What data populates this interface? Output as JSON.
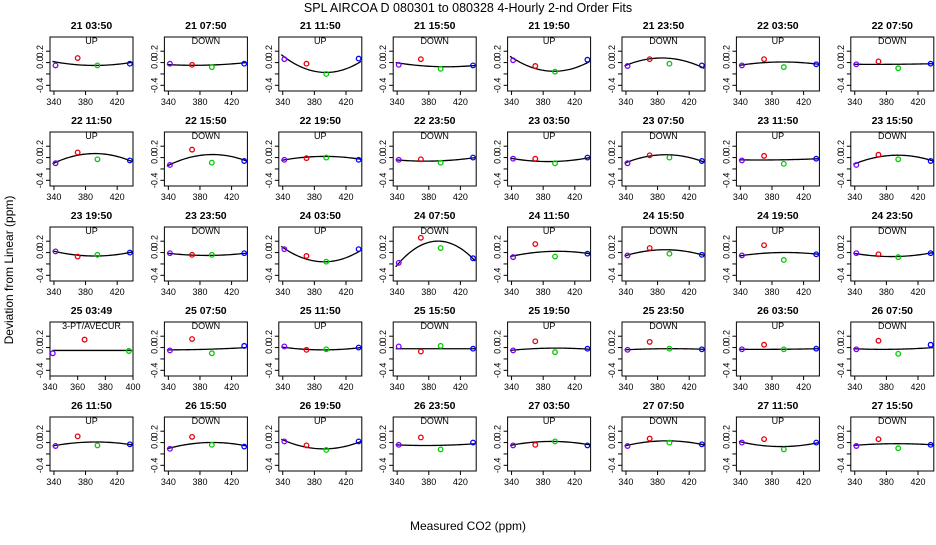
{
  "title": "SPL   AIRCOA D   080301 to 080328   4-Hourly 2-nd Order Fits",
  "xlabel": "Measured CO2 (ppm)",
  "ylabel": "Deviation from Linear (ppm)",
  "colors": {
    "red": "#e8000b",
    "green": "#00cc00",
    "blue": "#0000ff",
    "purple": "#7a00ff",
    "curve": "#000000"
  },
  "chart_data": {
    "type": "scatter",
    "grid": false,
    "layout": "5 rows x 8 columns of small multiples",
    "ylim": [
      -0.5,
      0.45
    ],
    "yticks": [
      -0.4,
      -0.2,
      0.0,
      0.2
    ],
    "yticklabels": [
      "-0.4",
      "",
      "0.0",
      "0.2"
    ],
    "default_xlim": [
      335,
      440
    ],
    "default_xticks": [
      340,
      380,
      420
    ],
    "panels": [
      {
        "title": "21 03:50",
        "sub": "UP",
        "pts": [
          [
            342,
            -0.05
          ],
          [
            370,
            0.08
          ],
          [
            395,
            -0.05
          ],
          [
            436,
            -0.02
          ]
        ],
        "curve": [
          0.02,
          -0.05,
          0.005
        ]
      },
      {
        "title": "21 07:50",
        "sub": "DOWN",
        "pts": [
          [
            342,
            -0.02
          ],
          [
            370,
            -0.04
          ],
          [
            395,
            -0.08
          ],
          [
            436,
            -0.02
          ]
        ],
        "curve": [
          -0.035,
          -0.045,
          0.0
        ]
      },
      {
        "title": "21 11:50",
        "sub": "UP",
        "pts": [
          [
            342,
            0.06
          ],
          [
            370,
            -0.02
          ],
          [
            395,
            -0.2
          ],
          [
            436,
            0.07
          ]
        ],
        "curve": [
          0.14,
          -0.17,
          0.02
        ]
      },
      {
        "title": "21 15:50",
        "sub": "DOWN",
        "pts": [
          [
            342,
            -0.04
          ],
          [
            370,
            0.06
          ],
          [
            395,
            -0.11
          ],
          [
            436,
            -0.05
          ]
        ],
        "curve": [
          0.0,
          -0.07,
          -0.05
        ]
      },
      {
        "title": "21 19:50",
        "sub": "UP",
        "pts": [
          [
            342,
            0.04
          ],
          [
            370,
            -0.06
          ],
          [
            395,
            -0.16
          ],
          [
            436,
            0.05
          ]
        ],
        "curve": [
          0.11,
          -0.15,
          0.02
        ]
      },
      {
        "title": "21 23:50",
        "sub": "DOWN",
        "pts": [
          [
            342,
            -0.06
          ],
          [
            370,
            0.06
          ],
          [
            395,
            -0.02
          ],
          [
            436,
            -0.05
          ]
        ],
        "curve": [
          -0.06,
          0.08,
          -0.1
        ]
      },
      {
        "title": "22 03:50",
        "sub": "UP",
        "pts": [
          [
            342,
            -0.05
          ],
          [
            370,
            0.06
          ],
          [
            395,
            -0.08
          ],
          [
            436,
            -0.03
          ]
        ],
        "curve": [
          -0.05,
          0.01,
          -0.03
        ]
      },
      {
        "title": "22 07:50",
        "sub": "DOWN",
        "pts": [
          [
            342,
            -0.03
          ],
          [
            370,
            0.02
          ],
          [
            395,
            -0.1
          ],
          [
            436,
            -0.02
          ]
        ],
        "curve": [
          -0.03,
          -0.03,
          -0.02
        ]
      },
      {
        "title": "22 11:50",
        "sub": "UP",
        "pts": [
          [
            342,
            -0.1
          ],
          [
            370,
            0.09
          ],
          [
            395,
            -0.03
          ],
          [
            436,
            -0.05
          ]
        ],
        "curve": [
          -0.11,
          0.07,
          -0.07
        ]
      },
      {
        "title": "22 15:50",
        "sub": "DOWN",
        "pts": [
          [
            342,
            -0.13
          ],
          [
            370,
            0.14
          ],
          [
            395,
            -0.09
          ],
          [
            436,
            -0.06
          ]
        ],
        "curve": [
          -0.15,
          0.05,
          -0.06
        ]
      },
      {
        "title": "22 19:50",
        "sub": "UP",
        "pts": [
          [
            342,
            -0.04
          ],
          [
            370,
            -0.01
          ],
          [
            395,
            0.0
          ],
          [
            436,
            -0.04
          ]
        ],
        "curve": [
          -0.05,
          0.02,
          -0.03
        ]
      },
      {
        "title": "22 23:50",
        "sub": "DOWN",
        "pts": [
          [
            342,
            -0.04
          ],
          [
            370,
            -0.03
          ],
          [
            395,
            -0.09
          ],
          [
            436,
            0.0
          ]
        ],
        "curve": [
          -0.04,
          -0.06,
          0.0
        ]
      },
      {
        "title": "23 03:50",
        "sub": "UP",
        "pts": [
          [
            342,
            -0.02
          ],
          [
            370,
            -0.02
          ],
          [
            395,
            -0.1
          ],
          [
            436,
            0.0
          ]
        ],
        "curve": [
          -0.01,
          -0.07,
          0.0
        ]
      },
      {
        "title": "23 07:50",
        "sub": "DOWN",
        "pts": [
          [
            342,
            -0.1
          ],
          [
            370,
            0.04
          ],
          [
            395,
            0.0
          ],
          [
            436,
            -0.06
          ]
        ],
        "curve": [
          -0.1,
          0.05,
          -0.08
        ]
      },
      {
        "title": "23 11:50",
        "sub": "UP",
        "pts": [
          [
            342,
            -0.05
          ],
          [
            370,
            0.03
          ],
          [
            395,
            -0.11
          ],
          [
            436,
            -0.02
          ]
        ],
        "curve": [
          -0.04,
          -0.04,
          -0.02
        ]
      },
      {
        "title": "23 15:50",
        "sub": "DOWN",
        "pts": [
          [
            342,
            -0.13
          ],
          [
            370,
            0.05
          ],
          [
            395,
            -0.03
          ],
          [
            436,
            -0.06
          ]
        ],
        "curve": [
          -0.12,
          0.04,
          -0.06
        ]
      },
      {
        "title": "23 19:50",
        "sub": "UP",
        "pts": [
          [
            342,
            0.02
          ],
          [
            370,
            -0.07
          ],
          [
            395,
            -0.04
          ],
          [
            436,
            0.0
          ]
        ],
        "curve": [
          0.03,
          -0.06,
          0.01
        ]
      },
      {
        "title": "23 23:50",
        "sub": "DOWN",
        "pts": [
          [
            342,
            -0.01
          ],
          [
            370,
            -0.04
          ],
          [
            395,
            -0.04
          ],
          [
            436,
            -0.01
          ]
        ],
        "curve": [
          -0.01,
          -0.05,
          -0.01
        ]
      },
      {
        "title": "24 03:50",
        "sub": "UP",
        "pts": [
          [
            342,
            0.06
          ],
          [
            370,
            -0.06
          ],
          [
            395,
            -0.16
          ],
          [
            436,
            0.06
          ]
        ],
        "curve": [
          0.11,
          -0.16,
          0.04
        ]
      },
      {
        "title": "24 07:50",
        "sub": "DOWN",
        "pts": [
          [
            342,
            -0.18
          ],
          [
            370,
            0.26
          ],
          [
            395,
            0.08
          ],
          [
            436,
            -0.1
          ]
        ],
        "curve": [
          -0.25,
          0.2,
          -0.15
        ]
      },
      {
        "title": "24 11:50",
        "sub": "UP",
        "pts": [
          [
            342,
            -0.08
          ],
          [
            370,
            0.15
          ],
          [
            395,
            -0.07
          ],
          [
            436,
            -0.02
          ]
        ],
        "curve": [
          -0.07,
          0.02,
          -0.02
        ]
      },
      {
        "title": "24 15:50",
        "sub": "DOWN",
        "pts": [
          [
            342,
            -0.05
          ],
          [
            370,
            0.08
          ],
          [
            395,
            -0.02
          ],
          [
            436,
            -0.04
          ]
        ],
        "curve": [
          -0.06,
          0.05,
          -0.05
        ]
      },
      {
        "title": "24 19:50",
        "sub": "UP",
        "pts": [
          [
            342,
            -0.05
          ],
          [
            370,
            0.13
          ],
          [
            395,
            -0.13
          ],
          [
            436,
            -0.03
          ]
        ],
        "curve": [
          -0.06,
          0.0,
          -0.03
        ]
      },
      {
        "title": "24 23:50",
        "sub": "DOWN",
        "pts": [
          [
            342,
            -0.01
          ],
          [
            370,
            -0.03
          ],
          [
            395,
            -0.08
          ],
          [
            436,
            -0.01
          ]
        ],
        "curve": [
          -0.01,
          -0.07,
          0.0
        ]
      },
      {
        "title": "25 03:49",
        "sub": "3-PT/AVECUR",
        "xlim": [
          340,
          400
        ],
        "xticks": [
          340,
          360,
          380,
          400
        ],
        "pts": [
          [
            342,
            -0.1
          ],
          [
            365,
            0.14
          ],
          [
            397,
            -0.06
          ]
        ],
        "curve": [
          -0.05,
          -0.05,
          -0.05
        ]
      },
      {
        "title": "25 07:50",
        "sub": "DOWN",
        "pts": [
          [
            342,
            -0.05
          ],
          [
            370,
            0.15
          ],
          [
            395,
            -0.1
          ],
          [
            436,
            0.03
          ]
        ],
        "curve": [
          -0.04,
          -0.03,
          0.0
        ]
      },
      {
        "title": "25 11:50",
        "sub": "UP",
        "pts": [
          [
            342,
            0.02
          ],
          [
            370,
            -0.04
          ],
          [
            395,
            -0.03
          ],
          [
            436,
            0.0
          ]
        ],
        "curve": [
          0.01,
          -0.04,
          0.0
        ]
      },
      {
        "title": "25 15:50",
        "sub": "DOWN",
        "pts": [
          [
            342,
            0.02
          ],
          [
            370,
            -0.07
          ],
          [
            395,
            0.03
          ],
          [
            436,
            -0.02
          ]
        ],
        "curve": [
          -0.02,
          -0.02,
          -0.02
        ]
      },
      {
        "title": "25 19:50",
        "sub": "UP",
        "pts": [
          [
            342,
            -0.05
          ],
          [
            370,
            0.11
          ],
          [
            395,
            -0.08
          ],
          [
            436,
            -0.02
          ]
        ],
        "curve": [
          -0.05,
          -0.01,
          -0.03
        ]
      },
      {
        "title": "25 23:50",
        "sub": "DOWN",
        "pts": [
          [
            342,
            -0.04
          ],
          [
            370,
            0.1
          ],
          [
            395,
            -0.02
          ],
          [
            436,
            -0.03
          ]
        ],
        "curve": [
          -0.04,
          -0.02,
          -0.03
        ]
      },
      {
        "title": "26 03:50",
        "sub": "UP",
        "pts": [
          [
            342,
            -0.03
          ],
          [
            370,
            0.05
          ],
          [
            395,
            -0.03
          ],
          [
            436,
            -0.02
          ]
        ],
        "curve": [
          -0.03,
          -0.03,
          -0.02
        ]
      },
      {
        "title": "26 07:50",
        "sub": "DOWN",
        "pts": [
          [
            342,
            -0.03
          ],
          [
            370,
            0.12
          ],
          [
            395,
            -0.11
          ],
          [
            436,
            0.05
          ]
        ],
        "curve": [
          -0.02,
          -0.03,
          0.0
        ]
      },
      {
        "title": "26 11:50",
        "sub": "UP",
        "pts": [
          [
            342,
            -0.06
          ],
          [
            370,
            0.11
          ],
          [
            395,
            -0.05
          ],
          [
            436,
            -0.03
          ]
        ],
        "curve": [
          -0.06,
          0.01,
          -0.04
        ]
      },
      {
        "title": "26 15:50",
        "sub": "DOWN",
        "pts": [
          [
            342,
            -0.11
          ],
          [
            370,
            0.1
          ],
          [
            395,
            -0.04
          ],
          [
            436,
            -0.07
          ]
        ],
        "curve": [
          -0.11,
          0.0,
          -0.06
        ]
      },
      {
        "title": "26 19:50",
        "sub": "UP",
        "pts": [
          [
            342,
            0.02
          ],
          [
            370,
            -0.05
          ],
          [
            395,
            -0.13
          ],
          [
            436,
            0.02
          ]
        ],
        "curve": [
          0.06,
          -0.11,
          0.02
        ]
      },
      {
        "title": "26 23:50",
        "sub": "DOWN",
        "pts": [
          [
            342,
            -0.04
          ],
          [
            370,
            0.09
          ],
          [
            395,
            -0.12
          ],
          [
            436,
            0.0
          ]
        ],
        "curve": [
          -0.04,
          -0.05,
          -0.02
        ]
      },
      {
        "title": "27 03:50",
        "sub": "UP",
        "pts": [
          [
            342,
            -0.05
          ],
          [
            370,
            -0.04
          ],
          [
            395,
            0.02
          ],
          [
            436,
            -0.05
          ]
        ],
        "curve": [
          -0.05,
          0.02,
          -0.04
        ]
      },
      {
        "title": "27 07:50",
        "sub": "DOWN",
        "pts": [
          [
            342,
            -0.06
          ],
          [
            370,
            0.07
          ],
          [
            395,
            0.0
          ],
          [
            436,
            -0.03
          ]
        ],
        "curve": [
          -0.06,
          0.03,
          -0.04
        ]
      },
      {
        "title": "27 11:50",
        "sub": "UP",
        "pts": [
          [
            342,
            0.0
          ],
          [
            370,
            0.06
          ],
          [
            395,
            -0.12
          ],
          [
            436,
            0.0
          ]
        ],
        "curve": [
          0.02,
          -0.07,
          0.0
        ]
      },
      {
        "title": "27 15:50",
        "sub": "DOWN",
        "pts": [
          [
            342,
            -0.06
          ],
          [
            370,
            0.06
          ],
          [
            395,
            -0.1
          ],
          [
            436,
            -0.04
          ]
        ],
        "curve": [
          -0.05,
          -0.02,
          -0.04
        ]
      }
    ]
  }
}
